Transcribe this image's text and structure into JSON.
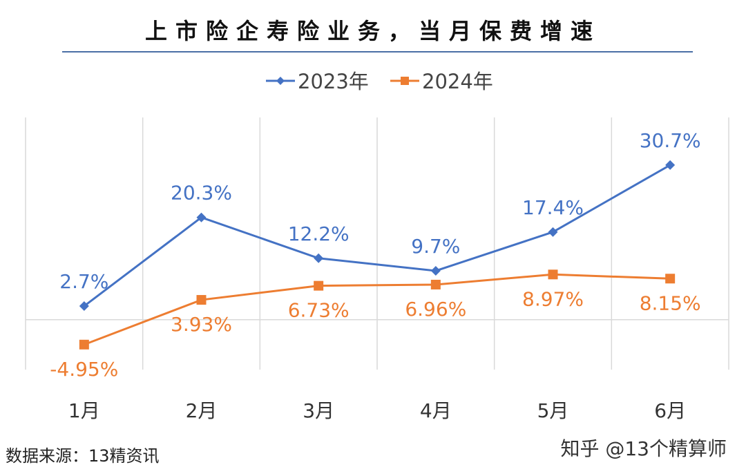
{
  "title": "上市险企寿险业务，当月保费增速",
  "source": "数据来源：13精资讯",
  "credit": "知乎 @13个精算师",
  "watermark": "13个精算师",
  "chart_data": {
    "type": "line",
    "title": "上市险企寿险业务，当月保费增速",
    "categories": [
      "1月",
      "2月",
      "3月",
      "4月",
      "5月",
      "6月"
    ],
    "series": [
      {
        "name": "2023年",
        "values": [
          2.7,
          20.3,
          12.2,
          9.7,
          17.4,
          30.7
        ],
        "labels": [
          "2.7%",
          "20.3%",
          "12.2%",
          "9.7%",
          "17.4%",
          "30.7%"
        ],
        "color": "#4472C4",
        "marker": "diamond"
      },
      {
        "name": "2024年",
        "values": [
          -4.95,
          3.93,
          6.73,
          6.96,
          8.97,
          8.15
        ],
        "labels": [
          "-4.95%",
          "3.93%",
          "6.73%",
          "6.96%",
          "8.97%",
          "8.15%"
        ],
        "color": "#ED7D31",
        "marker": "square"
      }
    ],
    "legend": "top",
    "grid": "vertical category separators",
    "unit": "%"
  }
}
